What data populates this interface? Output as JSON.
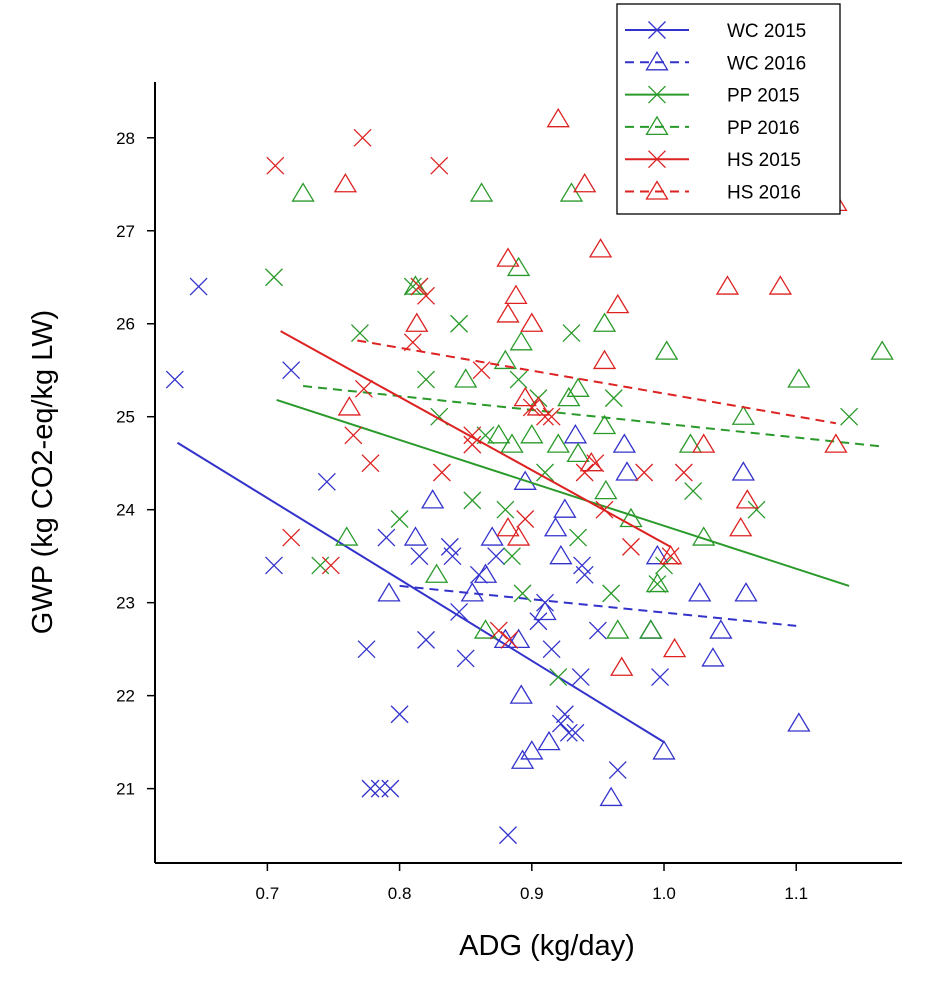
{
  "chart_data": {
    "type": "scatter",
    "title": "",
    "xlabel": "ADG (kg/day)",
    "ylabel": "GWP (kg CO2-eq/kg LW)",
    "xlim": [
      0.615,
      1.18
    ],
    "ylim": [
      20.2,
      28.6
    ],
    "x_ticks": [
      "0.7",
      "0.8",
      "0.9",
      "1.0",
      "1.1"
    ],
    "y_ticks": [
      "21",
      "22",
      "23",
      "24",
      "25",
      "26",
      "27",
      "28"
    ],
    "grid": false,
    "legend_position": "top-right",
    "colors": {
      "WC": "#3333cc",
      "PP": "#2a9a2a",
      "HS": "#dd2222"
    },
    "series": [
      {
        "name": "WC 2015",
        "marker": "x",
        "color": "#3333cc",
        "trend": {
          "style": "solid",
          "x": [
            0.632,
            1.0
          ],
          "y": [
            24.72,
            21.5
          ]
        },
        "points": [
          [
            0.63,
            25.4
          ],
          [
            0.648,
            26.4
          ],
          [
            0.705,
            23.4
          ],
          [
            0.718,
            25.5
          ],
          [
            0.745,
            24.3
          ],
          [
            0.775,
            22.5
          ],
          [
            0.778,
            21.0
          ],
          [
            0.785,
            21.0
          ],
          [
            0.79,
            23.7
          ],
          [
            0.793,
            21.0
          ],
          [
            0.8,
            21.8
          ],
          [
            0.815,
            23.5
          ],
          [
            0.82,
            22.6
          ],
          [
            0.838,
            23.6
          ],
          [
            0.84,
            23.5
          ],
          [
            0.845,
            22.9
          ],
          [
            0.85,
            22.4
          ],
          [
            0.86,
            23.3
          ],
          [
            0.873,
            23.5
          ],
          [
            0.882,
            20.5
          ],
          [
            0.905,
            22.8
          ],
          [
            0.91,
            23.0
          ],
          [
            0.915,
            22.5
          ],
          [
            0.922,
            21.7
          ],
          [
            0.925,
            21.8
          ],
          [
            0.928,
            21.6
          ],
          [
            0.933,
            21.6
          ],
          [
            0.937,
            22.2
          ],
          [
            0.938,
            23.4
          ],
          [
            0.94,
            23.3
          ],
          [
            0.95,
            22.7
          ],
          [
            0.965,
            21.2
          ],
          [
            0.997,
            22.2
          ]
        ]
      },
      {
        "name": "WC 2016",
        "marker": "triangle",
        "color": "#3333cc",
        "trend": {
          "style": "dashed",
          "x": [
            0.8,
            1.1
          ],
          "y": [
            23.18,
            22.75
          ]
        },
        "points": [
          [
            0.792,
            23.1
          ],
          [
            0.812,
            23.7
          ],
          [
            0.825,
            24.1
          ],
          [
            0.855,
            23.1
          ],
          [
            0.865,
            23.3
          ],
          [
            0.87,
            23.7
          ],
          [
            0.88,
            22.6
          ],
          [
            0.89,
            22.6
          ],
          [
            0.892,
            22.0
          ],
          [
            0.893,
            21.3
          ],
          [
            0.895,
            24.3
          ],
          [
            0.9,
            21.4
          ],
          [
            0.91,
            22.9
          ],
          [
            0.913,
            21.5
          ],
          [
            0.918,
            23.8
          ],
          [
            0.922,
            23.5
          ],
          [
            0.925,
            24.0
          ],
          [
            0.933,
            24.8
          ],
          [
            0.96,
            20.9
          ],
          [
            0.97,
            24.7
          ],
          [
            0.972,
            24.4
          ],
          [
            0.99,
            22.7
          ],
          [
            0.995,
            23.5
          ],
          [
            1.0,
            21.4
          ],
          [
            1.027,
            23.1
          ],
          [
            1.037,
            22.4
          ],
          [
            1.043,
            22.7
          ],
          [
            1.06,
            24.4
          ],
          [
            1.062,
            23.1
          ],
          [
            1.102,
            21.7
          ]
        ]
      },
      {
        "name": "PP 2015",
        "marker": "x",
        "color": "#2a9a2a",
        "trend": {
          "style": "solid",
          "x": [
            0.707,
            1.14
          ],
          "y": [
            25.18,
            23.18
          ]
        },
        "points": [
          [
            0.705,
            26.5
          ],
          [
            0.77,
            25.9
          ],
          [
            0.74,
            23.4
          ],
          [
            0.8,
            23.9
          ],
          [
            0.81,
            26.4
          ],
          [
            0.815,
            26.4
          ],
          [
            0.82,
            25.4
          ],
          [
            0.83,
            25.0
          ],
          [
            0.845,
            26.0
          ],
          [
            0.855,
            24.1
          ],
          [
            0.865,
            24.8
          ],
          [
            0.88,
            24.0
          ],
          [
            0.885,
            23.5
          ],
          [
            0.89,
            25.4
          ],
          [
            0.893,
            23.1
          ],
          [
            0.905,
            25.2
          ],
          [
            0.91,
            24.4
          ],
          [
            0.92,
            22.2
          ],
          [
            0.93,
            25.9
          ],
          [
            0.935,
            23.7
          ],
          [
            0.96,
            23.1
          ],
          [
            0.962,
            25.2
          ],
          [
            0.995,
            23.2
          ],
          [
            1.0,
            23.4
          ],
          [
            1.022,
            24.2
          ],
          [
            1.07,
            24.0
          ],
          [
            1.14,
            25.0
          ]
        ]
      },
      {
        "name": "PP 2016",
        "marker": "triangle",
        "color": "#2a9a2a",
        "trend": {
          "style": "dashed",
          "x": [
            0.727,
            1.165
          ],
          "y": [
            25.33,
            24.68
          ]
        },
        "points": [
          [
            0.727,
            27.4
          ],
          [
            0.76,
            23.7
          ],
          [
            0.812,
            26.4
          ],
          [
            0.828,
            23.3
          ],
          [
            0.85,
            25.4
          ],
          [
            0.862,
            27.4
          ],
          [
            0.865,
            22.7
          ],
          [
            0.875,
            24.8
          ],
          [
            0.88,
            25.6
          ],
          [
            0.885,
            24.7
          ],
          [
            0.89,
            26.6
          ],
          [
            0.892,
            25.8
          ],
          [
            0.9,
            24.8
          ],
          [
            0.92,
            24.7
          ],
          [
            0.928,
            25.2
          ],
          [
            0.93,
            27.4
          ],
          [
            0.935,
            25.3
          ],
          [
            0.935,
            24.6
          ],
          [
            0.955,
            26.0
          ],
          [
            0.956,
            24.2
          ],
          [
            0.955,
            24.9
          ],
          [
            0.965,
            22.7
          ],
          [
            0.975,
            23.9
          ],
          [
            0.99,
            22.7
          ],
          [
            0.995,
            23.2
          ],
          [
            1.002,
            25.7
          ],
          [
            1.02,
            24.7
          ],
          [
            1.03,
            23.7
          ],
          [
            1.06,
            25.0
          ],
          [
            1.102,
            25.4
          ],
          [
            1.165,
            25.7
          ]
        ]
      },
      {
        "name": "HS 2015",
        "marker": "x",
        "color": "#dd2222",
        "trend": {
          "style": "solid",
          "x": [
            0.71,
            1.005
          ],
          "y": [
            25.92,
            23.6
          ]
        },
        "points": [
          [
            0.706,
            27.7
          ],
          [
            0.718,
            23.7
          ],
          [
            0.748,
            23.4
          ],
          [
            0.765,
            24.8
          ],
          [
            0.772,
            28.0
          ],
          [
            0.773,
            25.3
          ],
          [
            0.778,
            24.5
          ],
          [
            0.81,
            25.8
          ],
          [
            0.815,
            26.4
          ],
          [
            0.82,
            26.3
          ],
          [
            0.83,
            27.7
          ],
          [
            0.832,
            24.4
          ],
          [
            0.855,
            24.8
          ],
          [
            0.855,
            24.7
          ],
          [
            0.862,
            25.5
          ],
          [
            0.875,
            22.7
          ],
          [
            0.883,
            22.6
          ],
          [
            0.895,
            23.9
          ],
          [
            0.9,
            25.1
          ],
          [
            0.91,
            25.0
          ],
          [
            0.915,
            25.0
          ],
          [
            0.94,
            24.4
          ],
          [
            0.948,
            24.5
          ],
          [
            0.955,
            24.0
          ],
          [
            0.975,
            23.6
          ],
          [
            0.985,
            24.4
          ],
          [
            1.005,
            23.5
          ],
          [
            1.015,
            24.4
          ]
        ]
      },
      {
        "name": "HS 2016",
        "marker": "triangle",
        "color": "#dd2222",
        "trend": {
          "style": "dashed",
          "x": [
            0.768,
            1.13
          ],
          "y": [
            25.82,
            24.93
          ]
        },
        "points": [
          [
            0.759,
            27.5
          ],
          [
            0.762,
            25.1
          ],
          [
            0.813,
            26.0
          ],
          [
            0.882,
            23.8
          ],
          [
            0.882,
            26.7
          ],
          [
            0.882,
            26.1
          ],
          [
            0.888,
            26.3
          ],
          [
            0.89,
            23.7
          ],
          [
            0.895,
            25.2
          ],
          [
            0.9,
            26.0
          ],
          [
            0.905,
            25.1
          ],
          [
            0.92,
            28.2
          ],
          [
            0.94,
            27.5
          ],
          [
            0.945,
            24.5
          ],
          [
            0.952,
            26.8
          ],
          [
            0.955,
            25.6
          ],
          [
            0.965,
            26.2
          ],
          [
            0.968,
            22.3
          ],
          [
            1.005,
            23.5
          ],
          [
            1.008,
            22.5
          ],
          [
            1.03,
            24.7
          ],
          [
            1.048,
            26.4
          ],
          [
            1.058,
            23.8
          ],
          [
            1.063,
            24.1
          ],
          [
            1.088,
            26.4
          ],
          [
            1.13,
            24.7
          ],
          [
            1.13,
            27.3
          ]
        ]
      }
    ]
  }
}
